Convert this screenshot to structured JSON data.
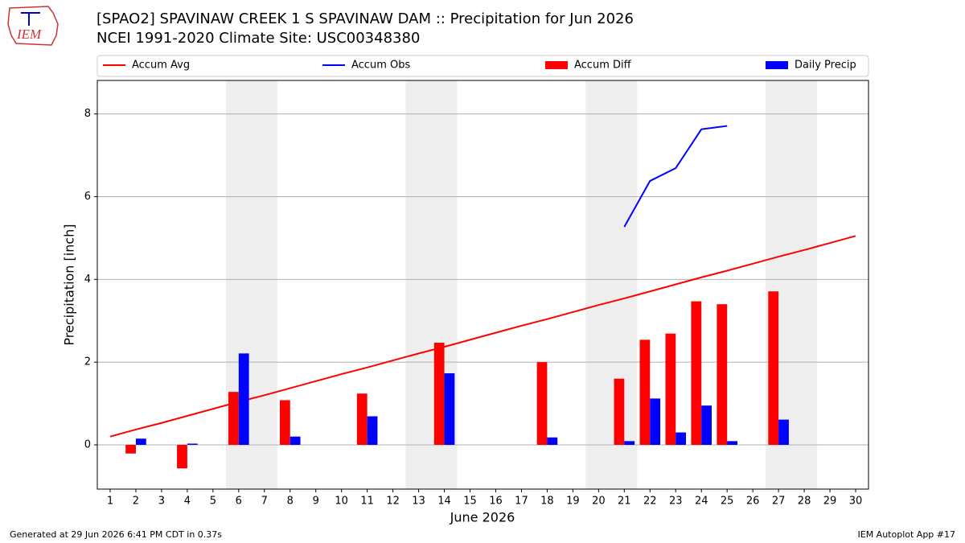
{
  "chart_data": {
    "type": "bar",
    "logo_text": "IEM",
    "title": "[SPAO2] SPAVINAW CREEK 1 S SPAVINAW DAM :: Precipitation for Jun 2026",
    "subtitle": "NCEI 1991-2020 Climate Site: USC00348380",
    "x_label": "June 2026",
    "y_label": "Precipitation [inch]",
    "x": [
      1,
      2,
      3,
      4,
      5,
      6,
      7,
      8,
      9,
      10,
      11,
      12,
      13,
      14,
      15,
      16,
      17,
      18,
      19,
      20,
      21,
      22,
      23,
      24,
      25,
      26,
      27,
      28,
      29,
      30
    ],
    "xlim": [
      0.5,
      30.5
    ],
    "xticks": [
      1,
      2,
      3,
      4,
      5,
      6,
      7,
      8,
      9,
      10,
      11,
      12,
      13,
      14,
      15,
      16,
      17,
      18,
      19,
      20,
      21,
      22,
      23,
      24,
      25,
      26,
      27,
      28,
      29,
      30
    ],
    "ylim": [
      -1.07,
      8.81
    ],
    "yticks": [
      0,
      2,
      4,
      6,
      8
    ],
    "grid": true,
    "weekend_shading": [
      [
        6,
        7
      ],
      [
        13,
        14
      ],
      [
        20,
        21
      ],
      [
        27,
        28
      ]
    ],
    "series": [
      {
        "name": "Accum Avg",
        "type": "line",
        "color": "#ff0000",
        "values": [
          0.2,
          0.37,
          0.53,
          0.7,
          0.87,
          1.04,
          1.2,
          1.37,
          1.54,
          1.71,
          1.87,
          2.04,
          2.21,
          2.37,
          2.54,
          2.71,
          2.88,
          3.04,
          3.21,
          3.38,
          3.54,
          3.71,
          3.88,
          4.05,
          4.21,
          4.38,
          4.55,
          4.71,
          4.88,
          5.05
        ]
      },
      {
        "name": "Accum Obs",
        "type": "line",
        "color": "#0000ff",
        "values": [
          null,
          null,
          null,
          null,
          null,
          null,
          null,
          null,
          null,
          null,
          null,
          null,
          null,
          null,
          null,
          null,
          null,
          null,
          null,
          null,
          5.27,
          6.38,
          6.69,
          7.63,
          7.71,
          null,
          null,
          null,
          null,
          null
        ]
      },
      {
        "name": "Accum Diff",
        "type": "bar",
        "color": "#ff0000",
        "values": [
          null,
          -0.21,
          null,
          -0.57,
          null,
          1.28,
          null,
          1.08,
          null,
          null,
          1.24,
          null,
          null,
          2.47,
          null,
          null,
          null,
          2.0,
          null,
          null,
          1.6,
          2.54,
          2.69,
          3.47,
          3.4,
          null,
          3.71,
          null,
          null,
          null
        ]
      },
      {
        "name": "Daily Precip",
        "type": "bar",
        "color": "#0000ff",
        "values": [
          null,
          0.15,
          null,
          0.03,
          null,
          2.21,
          null,
          0.2,
          null,
          null,
          0.69,
          null,
          null,
          1.73,
          null,
          null,
          null,
          0.18,
          null,
          null,
          0.09,
          1.12,
          0.3,
          0.95,
          0.09,
          null,
          0.61,
          null,
          null,
          null
        ]
      }
    ],
    "footer_left": "Generated at 29 Jun 2026 6:41 PM CDT in 0.37s",
    "footer_right": "IEM Autoplot App #17"
  }
}
